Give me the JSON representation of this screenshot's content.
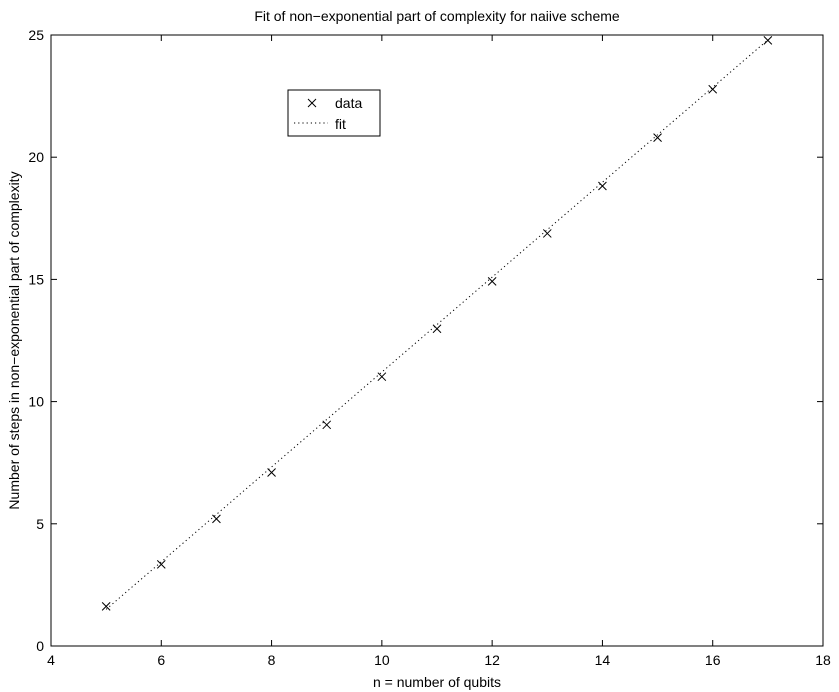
{
  "chart_data": {
    "type": "scatter",
    "title": "Fit of non−exponential part of complexity for naiive scheme",
    "xlabel": "n = number of qubits",
    "ylabel": "Number of steps in non−exponential part of complexity",
    "xlim": [
      4,
      18
    ],
    "ylim": [
      0,
      25
    ],
    "xticks": [
      4,
      6,
      8,
      10,
      12,
      14,
      16,
      18
    ],
    "yticks": [
      0,
      5,
      10,
      15,
      20,
      25
    ],
    "grid": false,
    "legend_position": "upper-left-inside",
    "series": [
      {
        "name": "data",
        "marker": "x",
        "color": "#000000",
        "x": [
          5,
          6,
          7,
          8,
          9,
          10,
          11,
          12,
          13,
          14,
          15,
          16,
          17
        ],
        "y": [
          1.62,
          3.34,
          5.2,
          7.1,
          9.05,
          11.02,
          12.98,
          14.92,
          16.88,
          18.82,
          20.8,
          22.78,
          24.78
        ]
      },
      {
        "name": "fit",
        "line_style": "dotted",
        "color": "#000000",
        "x": [
          5,
          17
        ],
        "y": [
          1.5,
          24.8
        ]
      }
    ]
  }
}
